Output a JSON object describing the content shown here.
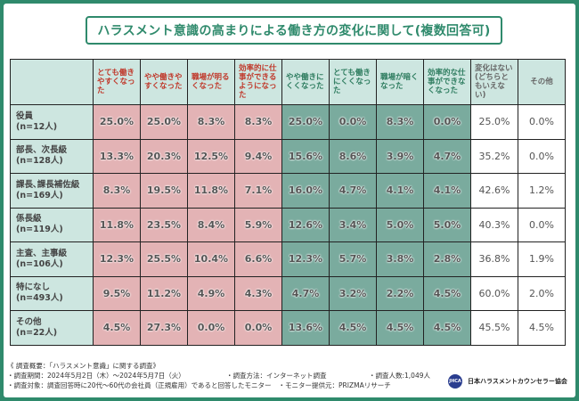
{
  "title": "ハラスメント意識の高まりによる働き方の変化に関して(複数回答可)",
  "columns": [
    {
      "label": "とても働きやすくなった",
      "group": "pos"
    },
    {
      "label": "やや働きやすくなった",
      "group": "pos"
    },
    {
      "label": "職場が明るくなった",
      "group": "pos"
    },
    {
      "label": "効率的に仕事ができるようになった",
      "group": "pos"
    },
    {
      "label": "やや働きにくくなった",
      "group": "neg"
    },
    {
      "label": "とても働きにくくなった",
      "group": "neg"
    },
    {
      "label": "職場が暗くなった",
      "group": "neg"
    },
    {
      "label": "効率的な仕事ができなくなった",
      "group": "neg"
    },
    {
      "label": "変化はない(どちらともいえない)",
      "group": "neu"
    },
    {
      "label": "その他",
      "group": "neu"
    }
  ],
  "rows": [
    {
      "name": "役員",
      "n": "(n=12人)",
      "values": [
        "25.0%",
        "25.0%",
        "8.3%",
        "8.3%",
        "25.0%",
        "0.0%",
        "8.3%",
        "0.0%",
        "25.0%",
        "0.0%"
      ]
    },
    {
      "name": "部長、次長級",
      "n": "(n=128人)",
      "values": [
        "13.3%",
        "20.3%",
        "12.5%",
        "9.4%",
        "15.6%",
        "8.6%",
        "3.9%",
        "4.7%",
        "35.2%",
        "0.0%"
      ]
    },
    {
      "name": "課長､課長補佐級",
      "n": "(n=169人)",
      "values": [
        "8.3%",
        "19.5%",
        "11.8%",
        "7.1%",
        "16.0%",
        "4.7%",
        "4.1%",
        "4.1%",
        "42.6%",
        "1.2%"
      ]
    },
    {
      "name": "係長級",
      "n": "(n=119人)",
      "values": [
        "11.8%",
        "23.5%",
        "8.4%",
        "5.9%",
        "12.6%",
        "3.4%",
        "5.0%",
        "5.0%",
        "40.3%",
        "0.0%"
      ]
    },
    {
      "name": "主査、主事級",
      "n": "(n=106人)",
      "values": [
        "12.3%",
        "25.5%",
        "10.4%",
        "6.6%",
        "12.3%",
        "5.7%",
        "3.8%",
        "2.8%",
        "36.8%",
        "1.9%"
      ]
    },
    {
      "name": "特になし",
      "n": "(n=493人)",
      "values": [
        "9.5%",
        "11.2%",
        "4.9%",
        "4.3%",
        "4.7%",
        "3.2%",
        "2.2%",
        "4.5%",
        "60.0%",
        "2.0%"
      ]
    },
    {
      "name": "その他",
      "n": "(n=22人)",
      "values": [
        "4.5%",
        "27.3%",
        "0.0%",
        "0.0%",
        "13.6%",
        "4.5%",
        "4.5%",
        "4.5%",
        "45.5%",
        "4.5%"
      ]
    }
  ],
  "footer": {
    "summary": "《 調査概要：「ハラスメント意識」に関する調査》",
    "period": "・調査期間：2024年5月2日（木）～2024年5月7日（火）",
    "method": "・調査方法：インターネット調査",
    "count": "・調査人数:1,049人",
    "target": "・調査対象：調査回答時に20代～60代の会社員（正規雇用）であると回答したモニター",
    "provider": "・モニター提供元：PRIZMAリサーチ"
  },
  "logo": {
    "mark": "JHCA",
    "name": "日本ハラスメントカウンセラー協会"
  },
  "colors": {
    "frame": "#2f8a6c",
    "positive": "#e3b3b5",
    "negative": "#7aab9e",
    "label_bg": "#cde6e0",
    "positive_text": "#c0392b",
    "negative_text": "#2f7d60"
  }
}
